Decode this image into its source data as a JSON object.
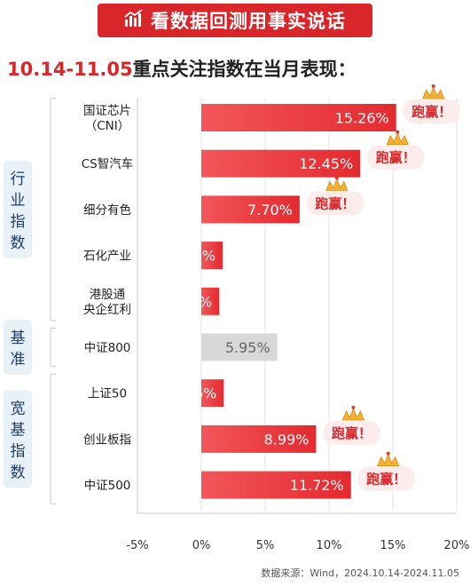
{
  "banner": {
    "title": "看数据回测用事实说话",
    "icon": "bar-chart-icon"
  },
  "headline": {
    "date_range": "10.14-11.05",
    "text": "重点关注指数在当月表现："
  },
  "source": "数据来源：Wind，2024.10.14-2024.11.05",
  "badge_text": "跑赢！",
  "colors": {
    "accent": "#d9262b",
    "bar_red": "#e42a2f",
    "bar_gray": "#d8d8d8",
    "group_bg": "#e8f0f8"
  },
  "chart_data": {
    "type": "bar",
    "orientation": "horizontal",
    "xlim": [
      -5,
      20
    ],
    "ticks": [
      "-5%",
      "0%",
      "5%",
      "10%",
      "15%",
      "20%"
    ],
    "groups": [
      {
        "label": "行业指数",
        "items": [
          {
            "name": "国证芯片（CNI）",
            "lines": [
              "国证芯片",
              "（CNI）"
            ],
            "value": 15.26,
            "label": "15.26%",
            "highlight": true,
            "badge": true
          },
          {
            "name": "CS智汽车",
            "lines": [
              "CS智汽车"
            ],
            "value": 12.45,
            "label": "12.45%",
            "highlight": true,
            "badge": true
          },
          {
            "name": "细分有色",
            "lines": [
              "细分有色"
            ],
            "value": 7.7,
            "label": "7.70%",
            "highlight": true,
            "badge": true
          },
          {
            "name": "石化产业",
            "lines": [
              "石化产业"
            ],
            "value": 1.67,
            "label": "1.67%",
            "highlight": true,
            "badge": false
          },
          {
            "name": "港股通央企红利",
            "lines": [
              "港股通",
              "央企红利"
            ],
            "value": 1.4,
            "label": "1.40%",
            "highlight": true,
            "badge": false
          }
        ]
      },
      {
        "label": "基准",
        "items": [
          {
            "name": "中证800",
            "lines": [
              "中证800"
            ],
            "value": 5.95,
            "label": "5.95%",
            "highlight": false,
            "badge": false
          }
        ]
      },
      {
        "label": "宽基指数",
        "items": [
          {
            "name": "上证50",
            "lines": [
              "上证50"
            ],
            "value": 1.76,
            "label": "1.76%",
            "highlight": true,
            "badge": false
          },
          {
            "name": "创业板指",
            "lines": [
              "创业板指"
            ],
            "value": 8.99,
            "label": "8.99%",
            "highlight": true,
            "badge": true
          },
          {
            "name": "中证500",
            "lines": [
              "中证500"
            ],
            "value": 11.72,
            "label": "11.72%",
            "highlight": true,
            "badge": true
          }
        ]
      }
    ]
  }
}
